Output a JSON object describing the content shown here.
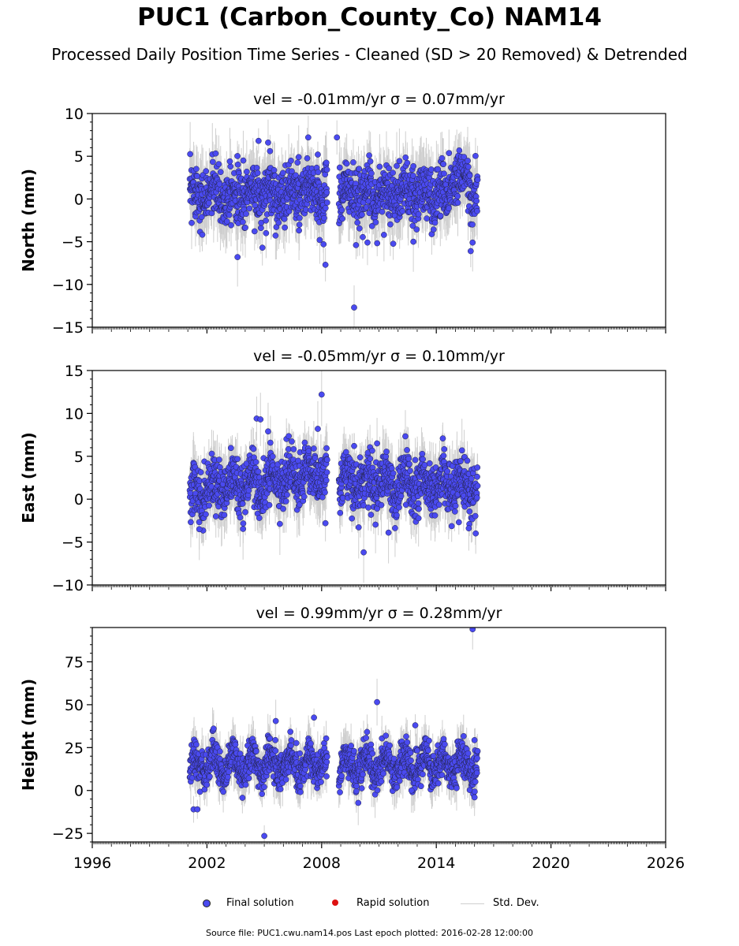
{
  "title": "PUC1 (Carbon_County_Co) NAM14",
  "subtitle": "Processed Daily Position Time Series - Cleaned (SD > 20 Removed) & Detrended",
  "legend": {
    "final": "Final solution",
    "rapid": "Rapid solution",
    "std": "Std. Dev."
  },
  "footer": "Source file: PUC1.cwu.nam14.pos  Last epoch plotted: 2016-02-28 12:00:00",
  "colors": {
    "final": "#4a4af0",
    "rapid": "#dd1111",
    "std": "#cfcfcf"
  },
  "chart_data": [
    {
      "type": "scatter",
      "panel": "north",
      "title": "vel = -0.01mm/yr   σ = 0.07mm/yr",
      "ylabel": "North (mm)",
      "xlim": [
        1996,
        2026
      ],
      "ylim": [
        -15,
        10
      ],
      "yticks": [
        -15,
        -10,
        -5,
        0,
        5,
        10
      ],
      "ytick_labels": [
        "−15",
        "−10",
        "−5",
        "0",
        "5",
        "10"
      ],
      "data_span": [
        2001.1,
        2016.16
      ],
      "gap": [
        2008.3,
        2008.9
      ],
      "approx_std": 1.6,
      "outliers": [
        [
          2001.2,
          -2.8
        ],
        [
          2003.2,
          4.4
        ],
        [
          2003.9,
          4.5
        ],
        [
          2003.6,
          -6.8
        ],
        [
          2004.7,
          6.8
        ],
        [
          2004.9,
          -5.7
        ],
        [
          2005.2,
          6.6
        ],
        [
          2005.3,
          5.6
        ],
        [
          2006.8,
          4.9
        ],
        [
          2007.3,
          7.2
        ],
        [
          2007.8,
          5.2
        ],
        [
          2007.9,
          -4.8
        ],
        [
          2008.1,
          -5.3
        ],
        [
          2008.2,
          -7.7
        ],
        [
          2008.8,
          7.2
        ],
        [
          2009.7,
          -12.7
        ],
        [
          2009.8,
          -5.4
        ],
        [
          2010.4,
          -5.1
        ],
        [
          2012.8,
          -5.0
        ],
        [
          2015.8,
          -6.1
        ],
        [
          2015.9,
          -5.1
        ]
      ]
    },
    {
      "type": "scatter",
      "panel": "east",
      "title": "vel = -0.05mm/yr   σ = 0.10mm/yr",
      "ylabel": "East (mm)",
      "xlim": [
        1996,
        2026
      ],
      "ylim": [
        -10,
        15
      ],
      "yticks": [
        -10,
        -5,
        0,
        5,
        10,
        15
      ],
      "ytick_labels": [
        "−10",
        "−5",
        "0",
        "5",
        "10",
        "15"
      ],
      "data_span": [
        2001.1,
        2016.16
      ],
      "gap": [
        2008.3,
        2008.9
      ],
      "approx_std": 1.5,
      "outliers": [
        [
          2001.6,
          -3.5
        ],
        [
          2004.6,
          9.4
        ],
        [
          2004.8,
          9.3
        ],
        [
          2005.2,
          7.9
        ],
        [
          2007.8,
          8.2
        ],
        [
          2008.0,
          12.2
        ],
        [
          2008.2,
          -2.8
        ],
        [
          2009.7,
          6.2
        ],
        [
          2010.2,
          -6.2
        ],
        [
          2010.9,
          6.5
        ],
        [
          2011.5,
          -3.9
        ],
        [
          2015.7,
          -3.4
        ]
      ]
    },
    {
      "type": "scatter",
      "panel": "height",
      "title": "vel = 0.99mm/yr   σ = 0.28mm/yr",
      "ylabel": "Height (mm)",
      "xlim": [
        1996,
        2026
      ],
      "ylim": [
        -30,
        95
      ],
      "yticks": [
        -25,
        0,
        25,
        50,
        75
      ],
      "ytick_labels": [
        "−25",
        "0",
        "25",
        "50",
        "75"
      ],
      "xticks": [
        1996,
        2002,
        2008,
        2014,
        2020,
        2026
      ],
      "data_span": [
        2001.1,
        2016.16
      ],
      "gap": [
        2008.3,
        2008.9
      ],
      "approx_std": 5.5,
      "outliers": [
        [
          2001.3,
          -11
        ],
        [
          2001.5,
          -11
        ],
        [
          2005.0,
          -26.5
        ],
        [
          2005.6,
          40.5
        ],
        [
          2007.6,
          42.5
        ],
        [
          2010.9,
          51.5
        ],
        [
          2012.9,
          38
        ],
        [
          2015.9,
          94
        ],
        [
          2016.0,
          -4
        ],
        [
          2012.7,
          0
        ]
      ]
    }
  ]
}
